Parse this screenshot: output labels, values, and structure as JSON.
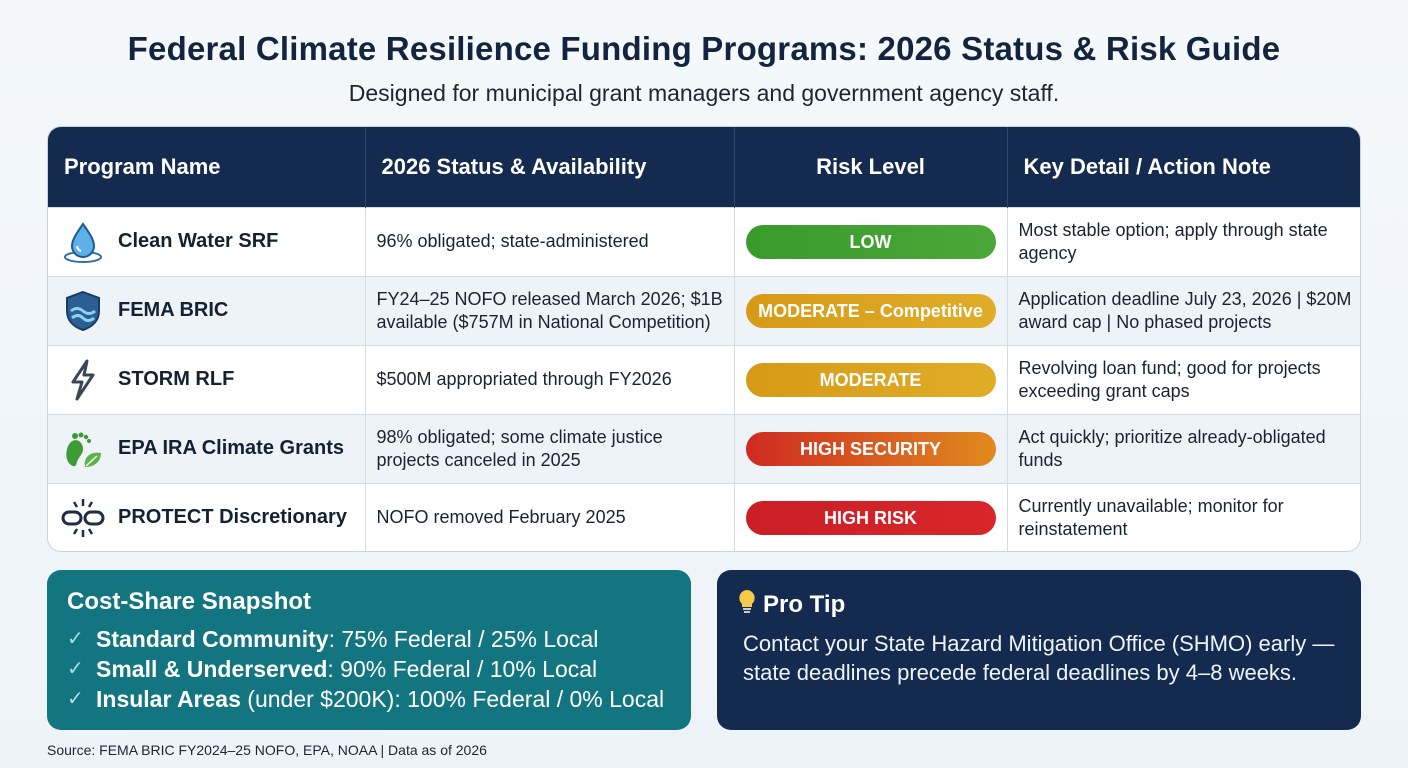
{
  "header": {
    "title": "Federal Climate Resilience Funding Programs: 2026 Status & Risk Guide",
    "subtitle": "Designed for municipal grant managers and government agency staff."
  },
  "table": {
    "columns": [
      "Program Name",
      "2026 Status & Availability",
      "Risk Level",
      "Key Detail / Action Note"
    ],
    "rows": [
      {
        "icon": "water-drop-icon",
        "name": "Clean Water SRF",
        "status": "96% obligated; state-administered",
        "risk": "LOW",
        "risk_color": "#3c9b2e",
        "detail": "Most stable option; apply through state agency"
      },
      {
        "icon": "shield-wave-icon",
        "name": "FEMA BRIC",
        "status": "FY24–25 NOFO released March 2026; $1B available ($757M in National Competition)",
        "risk": "MODERATE – Competitive",
        "risk_color": "#d9a21b",
        "detail": "Application deadline July 23, 2026 | $20M award cap | No phased projects"
      },
      {
        "icon": "lightning-icon",
        "name": "STORM RLF",
        "status": "$500M appropriated through FY2026",
        "risk": "MODERATE",
        "risk_color": "#d9a21b",
        "detail": "Revolving loan fund; good for projects exceeding grant caps"
      },
      {
        "icon": "footprint-leaf-icon",
        "name": "EPA IRA Climate Grants",
        "status": "98% obligated; some climate justice projects canceled in 2025",
        "risk": "HIGH SECURITY",
        "risk_color": "#d8621e",
        "detail": "Act quickly; prioritize already-obligated funds"
      },
      {
        "icon": "broken-link-icon",
        "name": "PROTECT Discretionary",
        "status": "NOFO removed February 2025",
        "risk": "HIGH RISK",
        "risk_color": "#cc2127",
        "detail": "Currently unavailable; monitor for reinstatement"
      }
    ]
  },
  "cost_share": {
    "title": "Cost-Share Snapshot",
    "items": [
      {
        "label": "Standard Community",
        "qualifier": "",
        "value": ": 75% Federal / 25% Local"
      },
      {
        "label": "Small & Underserved",
        "qualifier": "",
        "value": ": 90% Federal / 10% Local"
      },
      {
        "label": "Insular Areas",
        "qualifier": " (under $200K)",
        "value": ": 100% Federal / 0% Local"
      }
    ]
  },
  "pro_tip": {
    "title": "Pro Tip",
    "text": "Contact your State Hazard Mitigation Office (SHMO) early — state deadlines precede federal deadlines by 4–8 weeks."
  },
  "source": "Source: FEMA BRIC FY2024–25 NOFO, EPA, NOAA | Data as of 2026",
  "colors": {
    "navy": "#142b4f",
    "teal": "#137580"
  }
}
